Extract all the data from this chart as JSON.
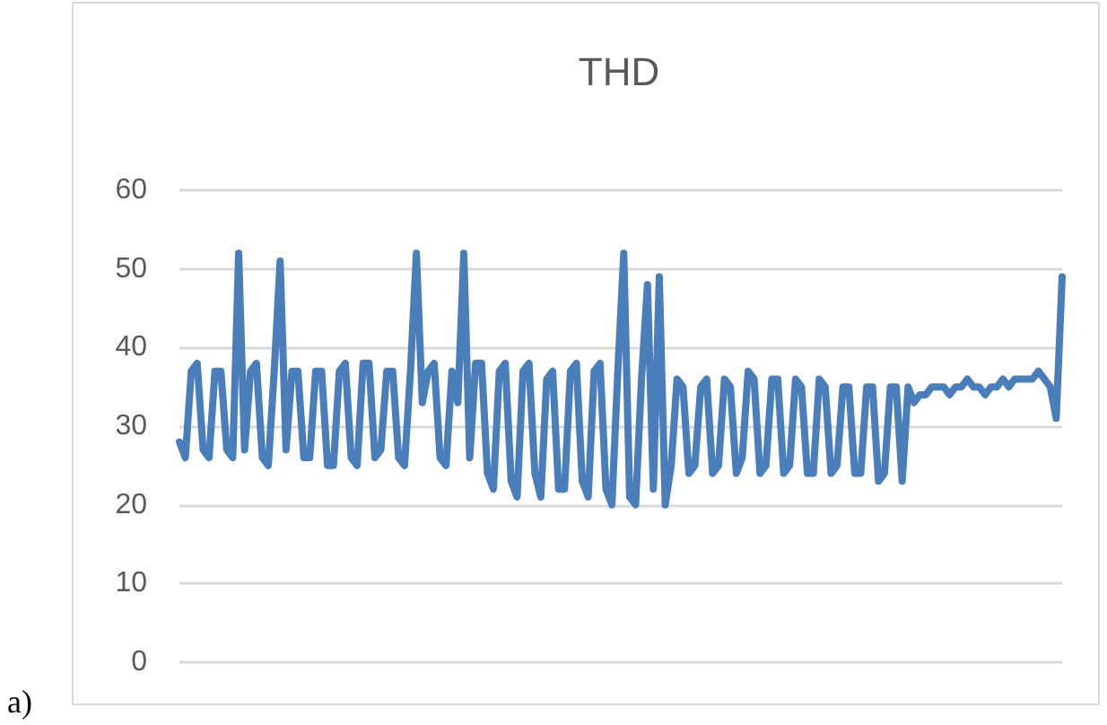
{
  "chart_data": {
    "type": "line",
    "title": "THD",
    "annotations": [
      "a)"
    ],
    "categories": [
      null,
      null,
      null,
      null,
      null,
      null,
      null,
      null,
      null,
      null,
      null,
      null,
      null,
      null,
      null,
      null,
      null,
      null,
      null,
      null,
      null,
      null,
      null,
      null,
      null,
      null,
      null,
      null,
      null,
      null,
      null,
      null,
      null,
      null,
      null,
      null,
      null,
      null,
      null,
      null,
      null,
      null,
      null,
      null,
      null,
      null,
      null,
      null,
      null,
      null,
      null,
      null,
      null,
      null,
      null,
      null,
      null,
      null,
      null,
      null,
      null,
      null,
      null,
      null,
      null,
      null,
      null,
      null,
      null,
      null,
      null,
      null,
      null,
      null,
      null,
      null,
      null,
      null,
      null,
      null,
      null,
      null,
      null,
      null,
      null,
      null,
      null,
      null,
      null,
      null,
      null,
      null,
      null,
      null,
      null,
      null,
      null,
      null,
      null,
      null,
      null,
      null,
      null,
      null,
      null,
      null,
      null,
      null,
      null,
      null,
      null,
      null,
      null,
      null,
      null,
      null,
      null,
      null,
      null,
      null,
      null,
      null,
      null,
      null,
      null,
      null,
      null,
      null,
      null,
      null,
      null,
      null,
      null,
      null,
      null,
      null,
      null,
      null,
      null,
      null,
      null,
      null,
      null,
      null,
      null,
      null,
      null,
      null,
      null,
      null
    ],
    "series": [
      {
        "color": "#4a7ebb",
        "values": [
          28,
          26,
          37,
          38,
          27,
          26,
          37,
          37,
          27,
          26,
          52,
          27,
          37,
          38,
          26,
          25,
          37,
          51,
          27,
          37,
          37,
          26,
          26,
          37,
          37,
          25,
          25,
          37,
          38,
          26,
          25,
          38,
          38,
          26,
          27,
          37,
          37,
          26,
          25,
          37,
          52,
          33,
          37,
          38,
          26,
          25,
          37,
          33,
          52,
          26,
          38,
          38,
          24,
          22,
          37,
          38,
          23,
          21,
          37,
          38,
          24,
          21,
          36,
          37,
          22,
          22,
          37,
          38,
          23,
          21,
          37,
          38,
          22,
          20,
          37,
          52,
          21,
          20,
          36,
          48,
          22,
          49,
          20,
          25,
          36,
          35,
          24,
          25,
          35,
          36,
          24,
          25,
          36,
          35,
          24,
          26,
          37,
          36,
          24,
          25,
          36,
          36,
          24,
          25,
          36,
          35,
          24,
          24,
          36,
          35,
          24,
          25,
          35,
          35,
          24,
          24,
          35,
          35,
          23,
          24,
          35,
          35,
          23,
          35,
          33,
          34,
          34,
          35,
          35,
          35,
          34,
          35,
          35,
          36,
          35,
          35,
          34,
          35,
          35,
          36,
          35,
          36,
          36,
          36,
          36,
          37,
          36,
          35,
          31,
          49
        ]
      }
    ],
    "ylim": [
      0,
      60
    ],
    "yticks": [
      0,
      10,
      20,
      30,
      40,
      50,
      60
    ],
    "grid": "y",
    "legend": false,
    "marker": "none",
    "line_style": "solid"
  }
}
